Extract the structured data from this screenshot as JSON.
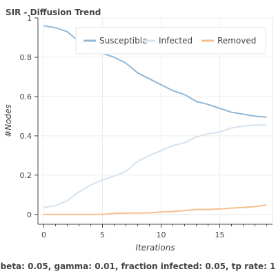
{
  "chart_data": {
    "type": "line",
    "title": "SIR - Diffusion Trend",
    "xlabel": "Iterations",
    "ylabel": "#Nodes",
    "xlim": [
      -0.5,
      19.5
    ],
    "ylim": [
      -0.05,
      1.0
    ],
    "xticks": [
      0,
      5,
      10,
      15
    ],
    "yticks": [
      0,
      0.2,
      0.4,
      0.6,
      0.8,
      1
    ],
    "grid": true,
    "legend_position": "top-right",
    "x": [
      0,
      1,
      2,
      3,
      4,
      5,
      6,
      7,
      8,
      9,
      10,
      11,
      12,
      13,
      14,
      15,
      16,
      17,
      18,
      19
    ],
    "series": [
      {
        "name": "Susceptible",
        "color": "#8fb8d8",
        "values": [
          0.96,
          0.95,
          0.93,
          0.88,
          0.85,
          0.82,
          0.8,
          0.77,
          0.72,
          0.69,
          0.66,
          0.63,
          0.61,
          0.575,
          0.56,
          0.54,
          0.52,
          0.51,
          0.5,
          0.495
        ]
      },
      {
        "name": "Infected",
        "color": "#d4e2ef",
        "values": [
          0.035,
          0.045,
          0.07,
          0.115,
          0.15,
          0.175,
          0.195,
          0.22,
          0.27,
          0.3,
          0.325,
          0.35,
          0.365,
          0.395,
          0.41,
          0.42,
          0.44,
          0.45,
          0.455,
          0.455
        ]
      },
      {
        "name": "Removed",
        "color": "#f7bf8d",
        "values": [
          0.0,
          0.0,
          0.0,
          0.0,
          0.0,
          0.0,
          0.005,
          0.007,
          0.007,
          0.008,
          0.012,
          0.015,
          0.02,
          0.025,
          0.025,
          0.028,
          0.032,
          0.035,
          0.04,
          0.048
        ]
      }
    ]
  },
  "caption": "beta: 0.05, gamma: 0.01, fraction infected: 0.05, tp rate: 1"
}
